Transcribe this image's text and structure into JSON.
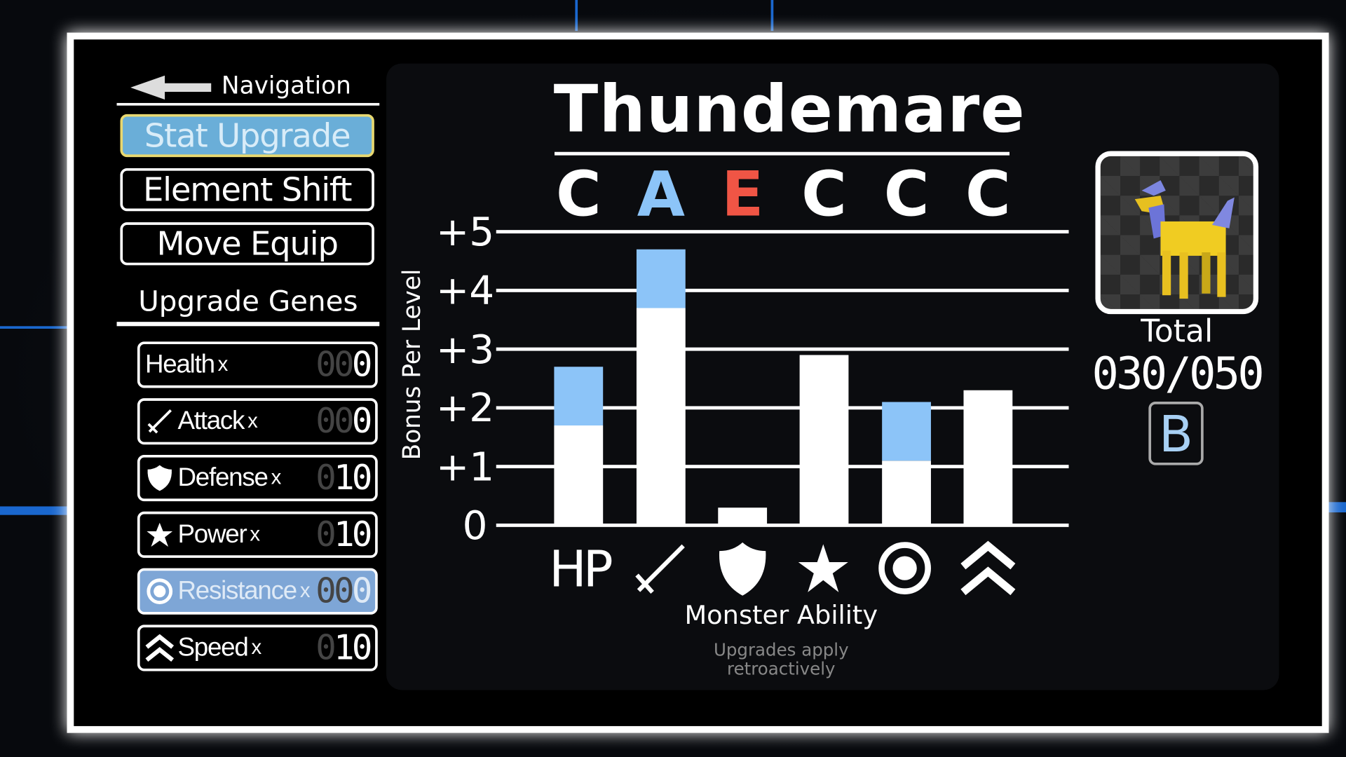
{
  "nav": {
    "title": "Navigation",
    "buttons": [
      {
        "label": "Stat Upgrade",
        "active": true
      },
      {
        "label": "Element Shift"
      },
      {
        "label": "Move Equip"
      }
    ]
  },
  "genes": {
    "title": "Upgrade Genes",
    "items": [
      {
        "label": "Health",
        "icon": "none",
        "mult": "x",
        "count_dim": "00",
        "count": "0"
      },
      {
        "label": "Attack",
        "icon": "sword-icon",
        "mult": "x",
        "count_dim": "00",
        "count": "0"
      },
      {
        "label": "Defense",
        "icon": "shield-icon",
        "mult": "x",
        "count_dim": "0",
        "count": "10"
      },
      {
        "label": "Power",
        "icon": "star-icon",
        "mult": "x",
        "count_dim": "0",
        "count": "10"
      },
      {
        "label": "Resistance",
        "icon": "ring-icon",
        "mult": "x",
        "count_dim": "00",
        "count": "0",
        "highlighted": true
      },
      {
        "label": "Speed",
        "icon": "double-chevron-up-icon",
        "mult": "x",
        "count_dim": "0",
        "count": "10"
      }
    ]
  },
  "monster": {
    "name": "Thundemare",
    "total_label": "Total",
    "total": "030/050",
    "rank": "B"
  },
  "grades": [
    {
      "g": "C",
      "color": "#ffffff"
    },
    {
      "g": "A",
      "color": "#8cc4f8"
    },
    {
      "g": "E",
      "color": "#f05545"
    },
    {
      "g": "C",
      "color": "#ffffff"
    },
    {
      "g": "C",
      "color": "#ffffff"
    },
    {
      "g": "C",
      "color": "#ffffff"
    }
  ],
  "chart_data": {
    "type": "bar",
    "stacked": true,
    "ylabel": "Bonus Per Level",
    "xlabel": "Monster Ability",
    "ylim": [
      0,
      5
    ],
    "yticks": [
      "0",
      "+1",
      "+2",
      "+3",
      "+4",
      "+5"
    ],
    "categories": [
      "HP",
      "attack-sword-icon",
      "defense-shield-icon",
      "power-star-icon",
      "resistance-ring-icon",
      "speed-chevron-icon"
    ],
    "category_first_label": "HP",
    "series": [
      {
        "values": [
          1.7,
          3.7,
          0.3,
          2.9,
          1.1,
          2.3
        ],
        "color": "#ffffff"
      },
      {
        "values": [
          1.0,
          1.0,
          0,
          0,
          1.0,
          0
        ],
        "color": "#8cc4f8"
      }
    ],
    "grid": true
  },
  "note": {
    "line1": "Upgrades apply",
    "line2": "retroactively"
  }
}
